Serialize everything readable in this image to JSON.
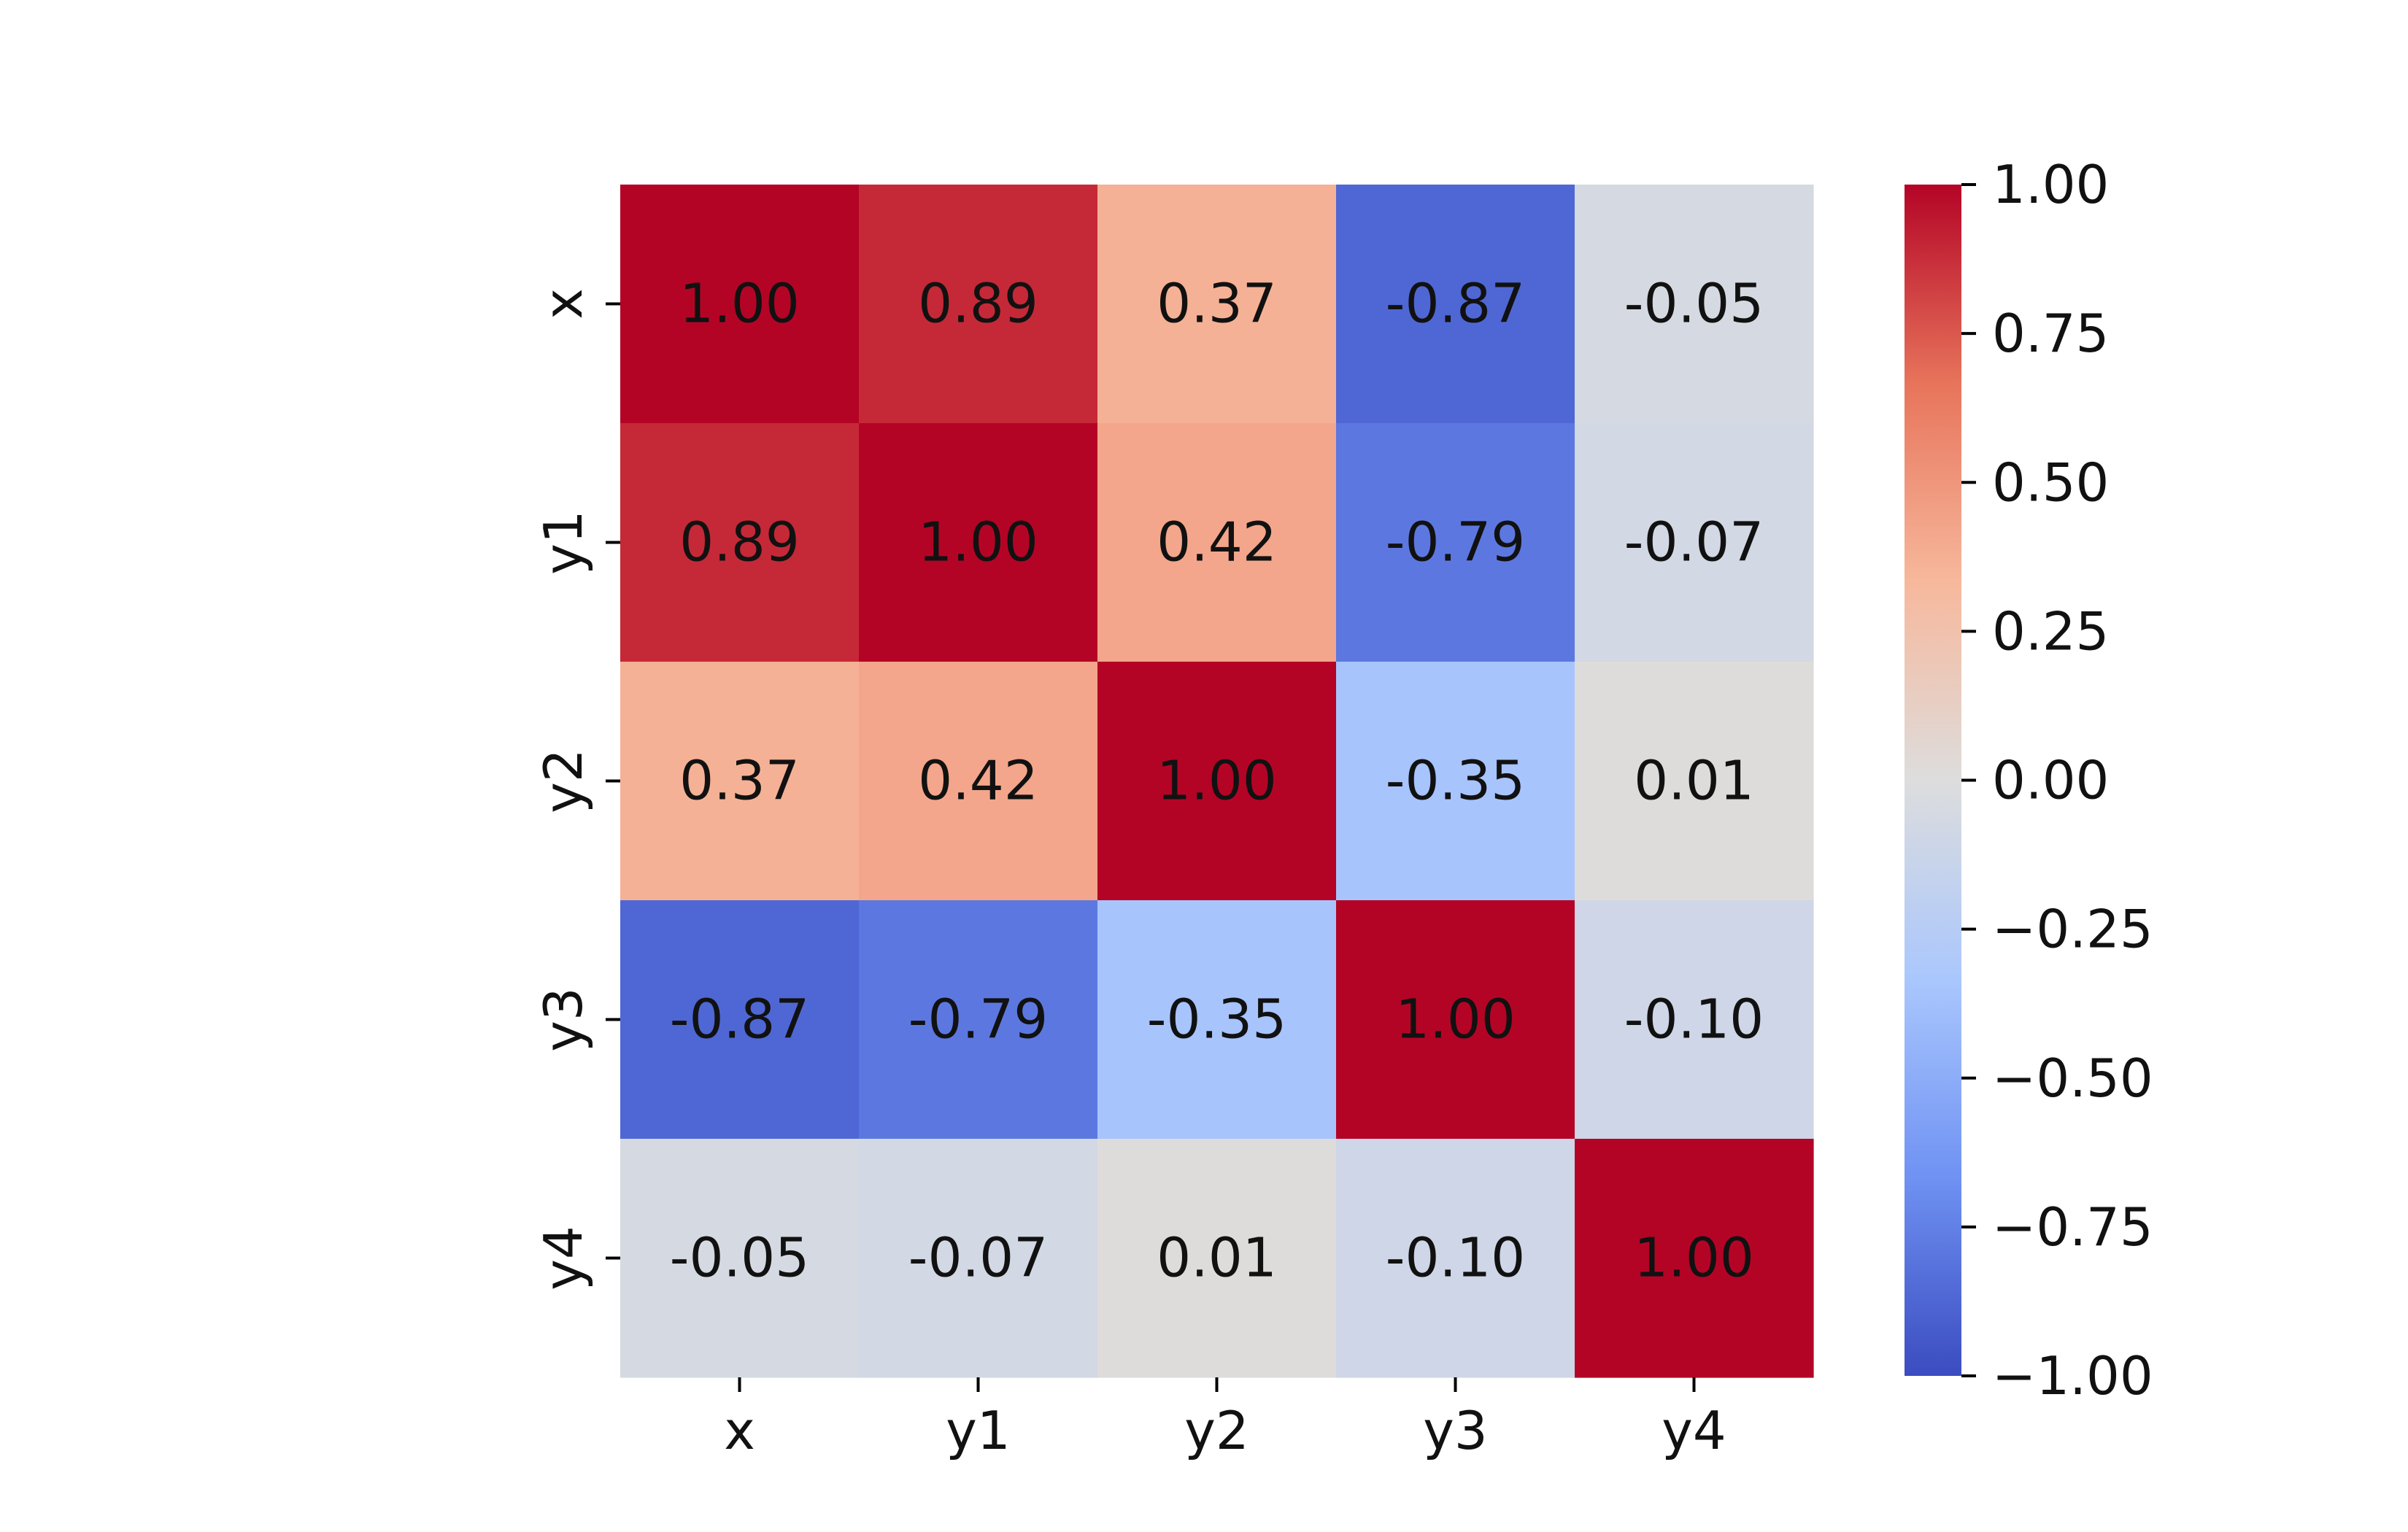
{
  "chart_data": {
    "type": "heatmap",
    "title": "",
    "xlabel": "",
    "ylabel": "",
    "x_labels": [
      "x",
      "y1",
      "y2",
      "y3",
      "y4"
    ],
    "y_labels": [
      "x",
      "y1",
      "y2",
      "y3",
      "y4"
    ],
    "values": [
      [
        1.0,
        0.89,
        0.37,
        -0.87,
        -0.05
      ],
      [
        0.89,
        1.0,
        0.42,
        -0.79,
        -0.07
      ],
      [
        0.37,
        0.42,
        1.0,
        -0.35,
        0.01
      ],
      [
        -0.87,
        -0.79,
        -0.35,
        1.0,
        -0.1
      ],
      [
        -0.05,
        -0.07,
        0.01,
        -0.1,
        1.0
      ]
    ],
    "annotations": [
      [
        "1.00",
        "0.89",
        "0.37",
        "-0.87",
        "-0.05"
      ],
      [
        "0.89",
        "1.00",
        "0.42",
        "-0.79",
        "-0.07"
      ],
      [
        "0.37",
        "0.42",
        "1.00",
        "-0.35",
        "0.01"
      ],
      [
        "-0.87",
        "-0.79",
        "-0.35",
        "1.00",
        "-0.10"
      ],
      [
        "-0.05",
        "-0.07",
        "0.01",
        "-0.10",
        "1.00"
      ]
    ],
    "colormap": "coolwarm",
    "colormap_stops": [
      "#3b4cc0",
      "#6f92f3",
      "#aac7fd",
      "#dddddd",
      "#f7b89c",
      "#e7745b",
      "#b40426"
    ],
    "vmin": -1.0,
    "vmax": 1.0,
    "colorbar": {
      "ticks": [
        1.0,
        0.75,
        0.5,
        0.25,
        0.0,
        -0.25,
        -0.5,
        -0.75,
        -1.0
      ],
      "tick_labels": [
        "1.00",
        "0.75",
        "0.50",
        "0.25",
        "0.00",
        "−0.25",
        "−0.50",
        "−0.75",
        "−1.00"
      ],
      "position": "right"
    },
    "grid": false
  }
}
